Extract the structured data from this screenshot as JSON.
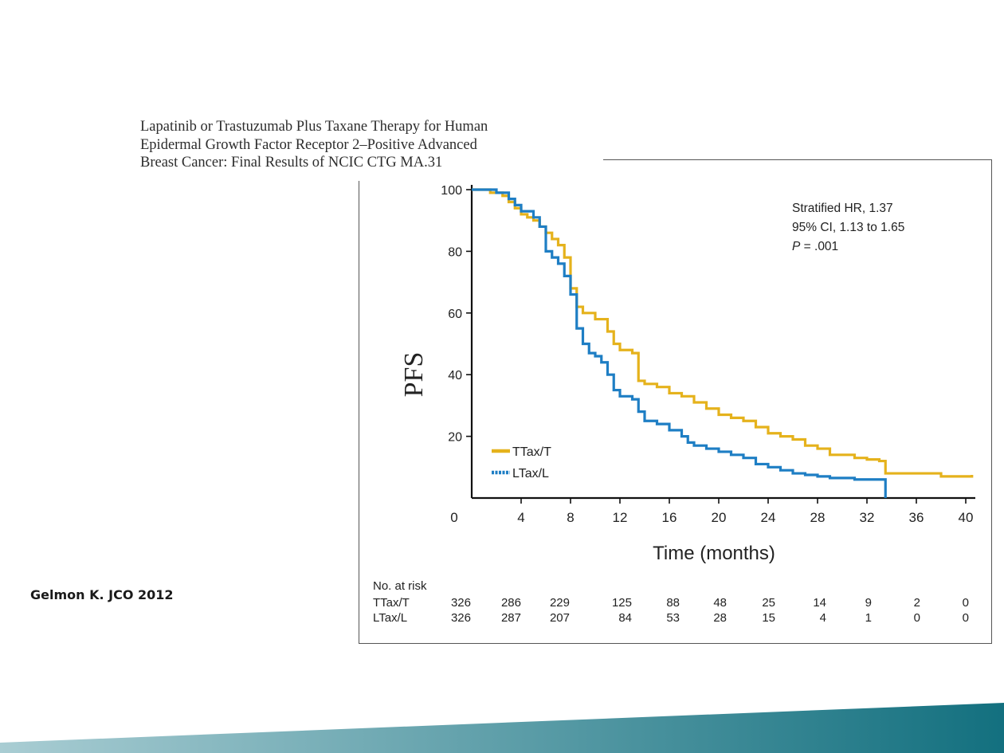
{
  "slide": {
    "title_lines": [
      "Lapatinib or Trastuzumab Plus Taxane Therapy for Human",
      "Epidermal Growth Factor Receptor 2–Positive Advanced",
      "Breast Cancer: Final Results of NCIC CTG MA.31"
    ],
    "citation": "Gelmon K.  JCO 2012",
    "footer_gradient": [
      "#a9cdd3",
      "#13707f"
    ]
  },
  "chart_data": {
    "type": "line",
    "title": "",
    "xlabel": "Time (months)",
    "ylabel": "PFS",
    "xlim": [
      0,
      40
    ],
    "ylim": [
      0,
      100
    ],
    "x_ticks": [
      0,
      4,
      8,
      12,
      16,
      20,
      24,
      28,
      32,
      36,
      40
    ],
    "y_ticks": [
      20,
      40,
      60,
      80,
      100
    ],
    "grid": false,
    "legend_position": "bottom-left",
    "annotation": {
      "line1": "Stratified HR, 1.37",
      "line2": "95% CI, 1.13 to 1.65",
      "line3_label": "P",
      "line3_value": " = .001"
    },
    "series": [
      {
        "name": "TTax/T",
        "color": "#e5b21c",
        "style": "solid",
        "points": [
          [
            0,
            100
          ],
          [
            1.5,
            99
          ],
          [
            2.5,
            98
          ],
          [
            3,
            96
          ],
          [
            3.5,
            94
          ],
          [
            4,
            92
          ],
          [
            4.5,
            91
          ],
          [
            5,
            90
          ],
          [
            5.5,
            88
          ],
          [
            6,
            86
          ],
          [
            6.5,
            84
          ],
          [
            7,
            82
          ],
          [
            7.5,
            78
          ],
          [
            8,
            68
          ],
          [
            8.5,
            62
          ],
          [
            9,
            60
          ],
          [
            10,
            58
          ],
          [
            11,
            54
          ],
          [
            11.5,
            50
          ],
          [
            12,
            48
          ],
          [
            13,
            47
          ],
          [
            13.5,
            38
          ],
          [
            14,
            37
          ],
          [
            15,
            36
          ],
          [
            16,
            34
          ],
          [
            17,
            33
          ],
          [
            18,
            31
          ],
          [
            19,
            29
          ],
          [
            20,
            27
          ],
          [
            21,
            26
          ],
          [
            22,
            25
          ],
          [
            23,
            23
          ],
          [
            24,
            21
          ],
          [
            25,
            20
          ],
          [
            26,
            19
          ],
          [
            27,
            17
          ],
          [
            28,
            16
          ],
          [
            29,
            14
          ],
          [
            31,
            13
          ],
          [
            32,
            12.5
          ],
          [
            33,
            12
          ],
          [
            33.5,
            8
          ],
          [
            38,
            7
          ],
          [
            40.5,
            7.5
          ]
        ]
      },
      {
        "name": "LTax/L",
        "color": "#1e7ec4",
        "style": "dotted",
        "points": [
          [
            0,
            100
          ],
          [
            2,
            99
          ],
          [
            3,
            97
          ],
          [
            3.5,
            95
          ],
          [
            4,
            93
          ],
          [
            5,
            91
          ],
          [
            5.5,
            88
          ],
          [
            6,
            80
          ],
          [
            6.5,
            78
          ],
          [
            7,
            76
          ],
          [
            7.5,
            72
          ],
          [
            8,
            66
          ],
          [
            8.5,
            55
          ],
          [
            9,
            50
          ],
          [
            9.5,
            47
          ],
          [
            10,
            46
          ],
          [
            10.5,
            44
          ],
          [
            11,
            40
          ],
          [
            11.5,
            35
          ],
          [
            12,
            33
          ],
          [
            13,
            32
          ],
          [
            13.5,
            28
          ],
          [
            14,
            25
          ],
          [
            15,
            24
          ],
          [
            16,
            22
          ],
          [
            17,
            20
          ],
          [
            17.5,
            18
          ],
          [
            18,
            17
          ],
          [
            19,
            16
          ],
          [
            20,
            15
          ],
          [
            21,
            14
          ],
          [
            22,
            13
          ],
          [
            23,
            11
          ],
          [
            24,
            10
          ],
          [
            25,
            9
          ],
          [
            26,
            8
          ],
          [
            27,
            7.5
          ],
          [
            28,
            7
          ],
          [
            29,
            6.5
          ],
          [
            31,
            6
          ],
          [
            32,
            6
          ],
          [
            33.5,
            6
          ],
          [
            33.5,
            0
          ]
        ]
      }
    ],
    "risk_table": {
      "header": "No. at risk",
      "times": [
        0,
        4,
        8,
        12,
        16,
        20,
        24,
        28,
        32,
        36,
        40
      ],
      "rows": [
        {
          "label": "TTax/T",
          "values": [
            326,
            286,
            229,
            125,
            88,
            48,
            25,
            14,
            9,
            2,
            0
          ]
        },
        {
          "label": "LTax/L",
          "values": [
            326,
            287,
            207,
            84,
            53,
            28,
            15,
            4,
            1,
            0,
            0
          ]
        }
      ]
    }
  }
}
